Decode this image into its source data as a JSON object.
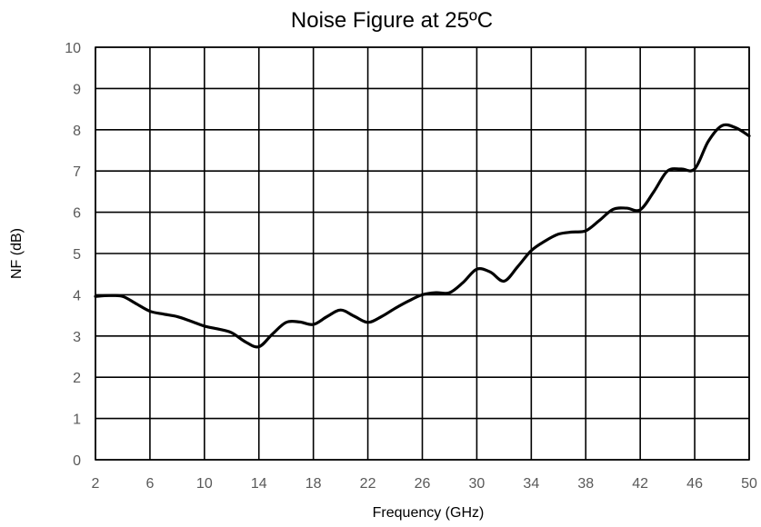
{
  "chart_data": {
    "type": "line",
    "title": "Noise Figure at 25ºC",
    "xlabel": "Frequency (GHz)",
    "ylabel": "NF (dB)",
    "xlim": [
      2,
      50
    ],
    "ylim": [
      0,
      10
    ],
    "x_ticks": [
      2,
      6,
      10,
      14,
      18,
      22,
      26,
      30,
      34,
      38,
      42,
      46,
      50
    ],
    "y_ticks": [
      0,
      1,
      2,
      3,
      4,
      5,
      6,
      7,
      8,
      9,
      10
    ],
    "grid": true,
    "legend": "none",
    "colors": {
      "series": "#000000",
      "grid": "#000000",
      "tick_text": "#595959"
    },
    "series": [
      {
        "x": [
          2,
          3,
          4,
          5,
          6,
          7,
          8,
          9,
          10,
          11,
          12,
          13,
          14,
          15,
          16,
          17,
          18,
          19,
          20,
          21,
          22,
          23,
          24,
          25,
          26,
          27,
          28,
          29,
          30,
          31,
          32,
          33,
          34,
          35,
          36,
          37,
          38,
          39,
          40,
          41,
          42,
          43,
          44,
          45,
          46,
          47,
          48,
          49,
          50
        ],
        "values": [
          3.96,
          3.98,
          3.96,
          3.78,
          3.6,
          3.53,
          3.47,
          3.36,
          3.24,
          3.17,
          3.08,
          2.86,
          2.74,
          3.05,
          3.33,
          3.34,
          3.28,
          3.47,
          3.63,
          3.48,
          3.33,
          3.47,
          3.67,
          3.85,
          4.0,
          4.05,
          4.05,
          4.3,
          4.62,
          4.55,
          4.33,
          4.68,
          5.07,
          5.3,
          5.47,
          5.52,
          5.55,
          5.8,
          6.07,
          6.1,
          6.06,
          6.5,
          7.0,
          7.05,
          7.05,
          7.72,
          8.1,
          8.05,
          7.85
        ]
      }
    ]
  }
}
